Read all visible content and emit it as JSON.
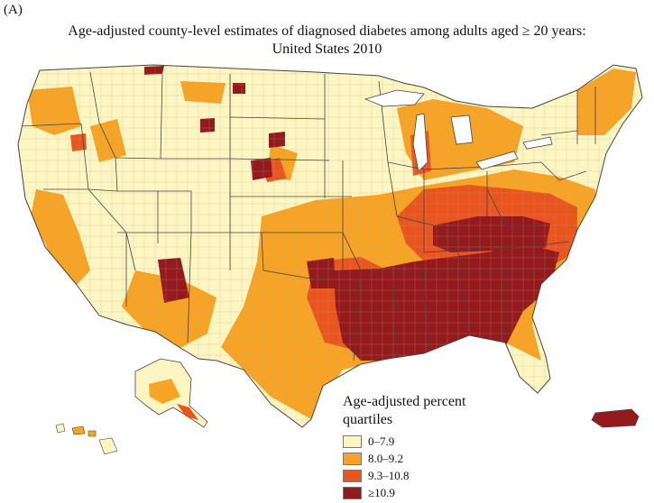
{
  "figure": {
    "panel_label": "(A)",
    "title_line1": "Age-adjusted county-level estimates of diagnosed diabetes among adults aged ≥ 20 years:",
    "title_line2": "United States 2010"
  },
  "legend": {
    "title_line1": "Age-adjusted percent",
    "title_line2": "quartiles",
    "items": [
      {
        "label": "0–7.9",
        "color": "#fdf6c3"
      },
      {
        "label": "8.0–9.2",
        "color": "#f7a325"
      },
      {
        "label": "9.3–10.8",
        "color": "#e9541f"
      },
      {
        "label": "≥10.9",
        "color": "#951a1d"
      }
    ]
  },
  "colors": {
    "state_border": "#444444",
    "county_border": "#b8ad86"
  }
}
